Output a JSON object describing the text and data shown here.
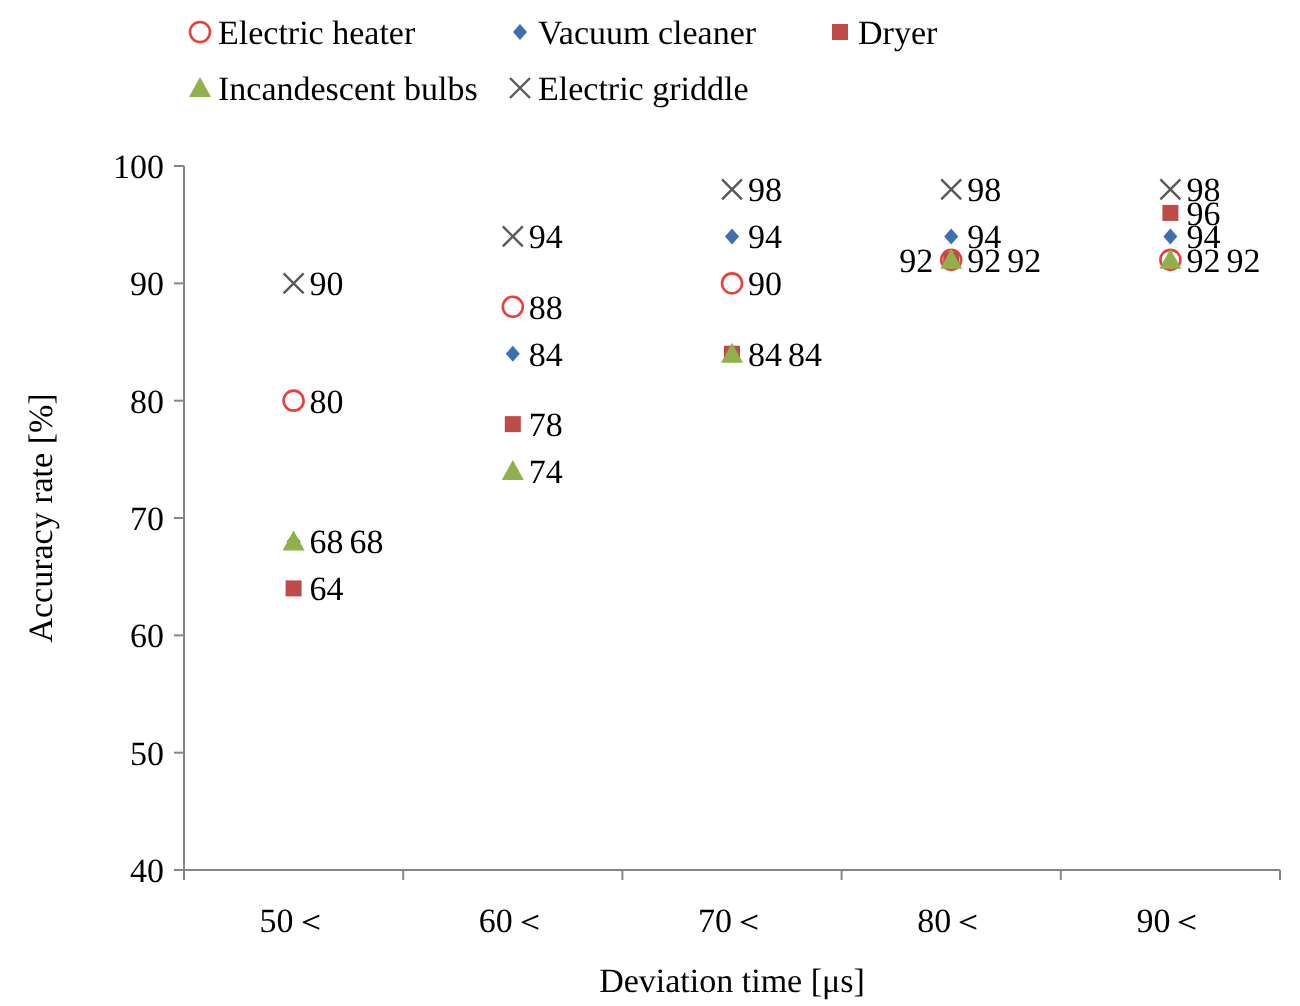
{
  "chart_data": {
    "type": "scatter",
    "xlabel": "Deviation time [μs]",
    "ylabel": "Accuracy rate [%]",
    "categories": [
      "50＜",
      "60＜",
      "70＜",
      "80＜",
      "90＜"
    ],
    "ylim": [
      40,
      100
    ],
    "yticks": [
      40,
      50,
      60,
      70,
      80,
      90,
      100
    ],
    "grid": false,
    "legend": "top",
    "data_labels": true,
    "series": [
      {
        "name": "Electric heater",
        "color": "#e8413c",
        "marker": "circle",
        "values": [
          80,
          88,
          90,
          92,
          92
        ]
      },
      {
        "name": "Vacuum cleaner",
        "color": "#3e6fb0",
        "marker": "diamond",
        "values": [
          68,
          84,
          94,
          94,
          94
        ]
      },
      {
        "name": "Dryer",
        "color": "#be4b48",
        "marker": "square",
        "values": [
          64,
          78,
          84,
          92,
          96
        ]
      },
      {
        "name": "Incandescent bulbs",
        "color": "#8fb04a",
        "marker": "triangle",
        "values": [
          68,
          74,
          84,
          92,
          92
        ]
      },
      {
        "name": "Electric griddle",
        "color": "#595959",
        "marker": "cross",
        "values": [
          90,
          94,
          98,
          98,
          98
        ]
      }
    ]
  }
}
